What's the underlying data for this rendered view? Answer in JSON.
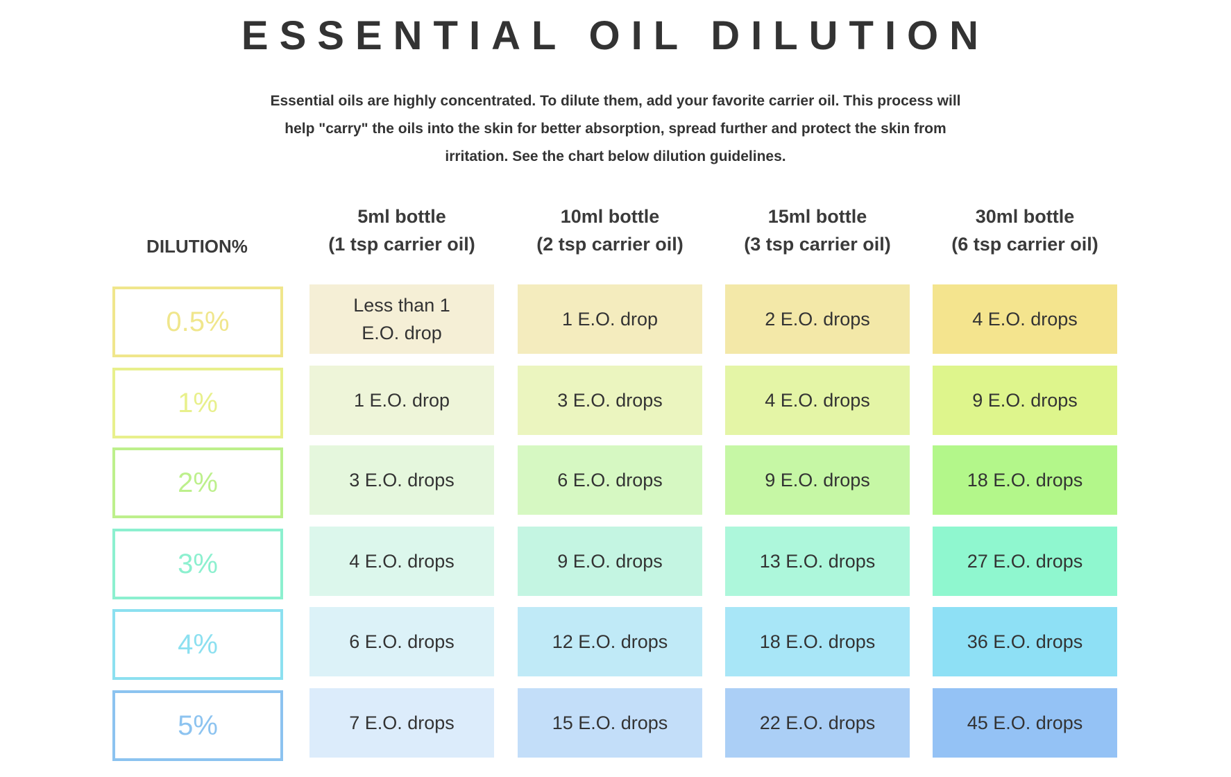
{
  "title": "ESSENTIAL OIL DILUTION",
  "intro": "Essential oils are highly concentrated. To dilute them, add your favorite carrier oil. This process will help \"carry\" the oils into the skin for better absorption, spread further and protect the skin from irritation. See the chart below dilution guidelines.",
  "table": {
    "dilution_header": "DILUTION%",
    "columns": [
      {
        "line1": "5ml bottle",
        "line2": "(1 tsp carrier oil)"
      },
      {
        "line1": "10ml bottle",
        "line2": "(2 tsp carrier oil)"
      },
      {
        "line1": "15ml bottle",
        "line2": "(3 tsp carrier oil)"
      },
      {
        "line1": "30ml bottle",
        "line2": "(6 tsp carrier oil)"
      }
    ],
    "rows": [
      {
        "dilution": "0.5%",
        "cells": [
          "Less than 1 E.O. drop",
          "1 E.O. drop",
          "2 E.O. drops",
          "4 E.O. drops"
        ]
      },
      {
        "dilution": "1%",
        "cells": [
          "1 E.O. drop",
          "3 E.O. drops",
          "4 E.O. drops",
          "9 E.O. drops"
        ]
      },
      {
        "dilution": "2%",
        "cells": [
          "3 E.O. drops",
          "6 E.O. drops",
          "9 E.O. drops",
          "18 E.O. drops"
        ]
      },
      {
        "dilution": "3%",
        "cells": [
          "4 E.O. drops",
          "9 E.O. drops",
          "13 E.O. drops",
          "27 E.O. drops"
        ]
      },
      {
        "dilution": "4%",
        "cells": [
          "6 E.O. drops",
          "12 E.O. drops",
          "18 E.O. drops",
          "36 E.O. drops"
        ]
      },
      {
        "dilution": "5%",
        "cells": [
          "7 E.O. drops",
          "15 E.O. drops",
          "22 E.O. drops",
          "45 E.O. drops"
        ]
      }
    ]
  },
  "colors": {
    "row_accent": [
      "#f0e68c",
      "#e8f08c",
      "#bdf08c",
      "#8cf0cf",
      "#8ce0f0",
      "#8cc3f0"
    ],
    "cell_fills": [
      [
        "#f5efd6",
        "#f4ecbe",
        "#f3e8a8",
        "#f4e48e"
      ],
      [
        "#eef5d9",
        "#ebf5bf",
        "#e4f5a6",
        "#def58c"
      ],
      [
        "#e5f7dd",
        "#d6f8c2",
        "#c6f7a5",
        "#b3f78a"
      ],
      [
        "#dcf7ec",
        "#c4f5e2",
        "#adf7db",
        "#8ff7cf"
      ],
      [
        "#dcf2f8",
        "#c0eaf7",
        "#a8e6f7",
        "#8ee0f5"
      ],
      [
        "#dcecfb",
        "#c3def9",
        "#abcff6",
        "#94c2f5"
      ]
    ]
  }
}
